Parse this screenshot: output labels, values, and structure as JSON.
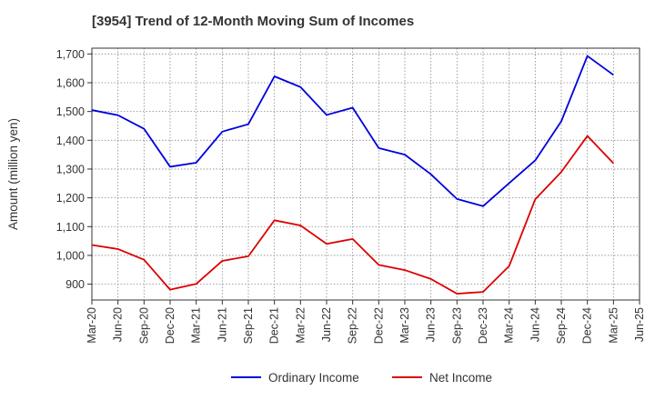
{
  "chart_data": {
    "type": "line",
    "title": "[3954]  Trend of 12-Month Moving Sum of Incomes",
    "xlabel": "",
    "ylabel": "Amount (million yen)",
    "categories": [
      "Mar-20",
      "Jun-20",
      "Sep-20",
      "Dec-20",
      "Mar-21",
      "Jun-21",
      "Sep-21",
      "Dec-21",
      "Mar-22",
      "Jun-22",
      "Sep-22",
      "Dec-22",
      "Mar-23",
      "Jun-23",
      "Sep-23",
      "Dec-23",
      "Mar-24",
      "Jun-24",
      "Sep-24",
      "Dec-24",
      "Mar-25",
      "Jun-25"
    ],
    "ylim": [
      845,
      1720
    ],
    "yticks": [
      900,
      1000,
      1100,
      1200,
      1300,
      1400,
      1500,
      1600,
      1700
    ],
    "ytick_labels": [
      "900",
      "1,000",
      "1,100",
      "1,200",
      "1,300",
      "1,400",
      "1,500",
      "1,600",
      "1,700"
    ],
    "grid": true,
    "legend_position": "bottom-center",
    "series": [
      {
        "name": "Ordinary Income",
        "color": "#0000dd",
        "values": [
          1505,
          1487,
          1440,
          1308,
          1322,
          1430,
          1456,
          1622,
          1585,
          1488,
          1513,
          1373,
          1350,
          1282,
          1196,
          1171,
          1251,
          1330,
          1466,
          1693,
          1627,
          null
        ]
      },
      {
        "name": "Net Income",
        "color": "#dd0000",
        "values": [
          1036,
          1022,
          985,
          881,
          901,
          981,
          997,
          1122,
          1104,
          1040,
          1057,
          967,
          949,
          918,
          867,
          873,
          963,
          1195,
          1290,
          1415,
          1320,
          null
        ]
      }
    ]
  }
}
